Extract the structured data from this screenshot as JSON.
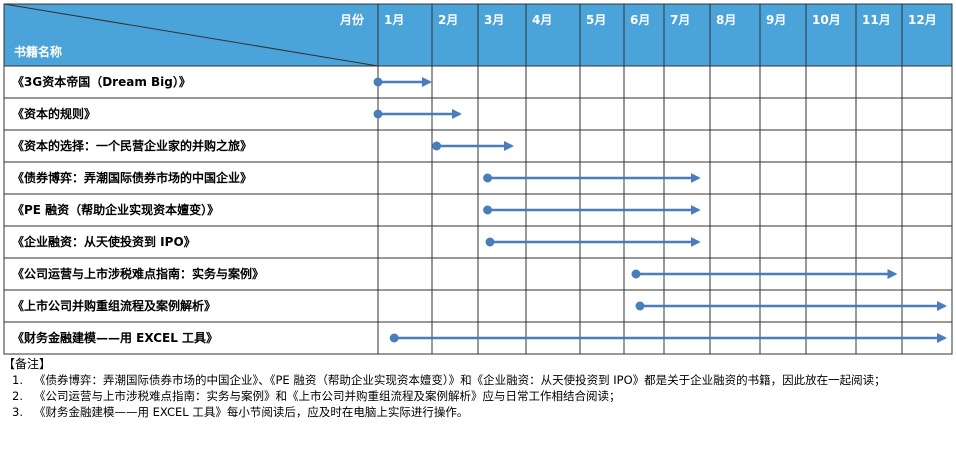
{
  "header": {
    "month_label": "月份",
    "book_label": "书籍名称",
    "color": "#4aa3d9"
  },
  "months": [
    "1月",
    "2月",
    "3月",
    "4月",
    "5月",
    "6月",
    "7月",
    "8月",
    "9月",
    "10月",
    "11月",
    "12月"
  ],
  "arrow_color": "#4a7ebb",
  "books": [
    {
      "title": "《3G资本帝国（Dream Big）》",
      "start_month": 1.0,
      "end_month": 2.0
    },
    {
      "title": "《资本的规则》",
      "start_month": 1.0,
      "end_month": 2.65
    },
    {
      "title": "《资本的选择：一个民营企业家的并购之旅》",
      "start_month": 2.1,
      "end_month": 3.75
    },
    {
      "title": "《债券博弈：弄潮国际债券市场的中国企业》",
      "start_month": 3.2,
      "end_month": 7.8
    },
    {
      "title": "《PE 融资（帮助企业实现资本嬗变）》",
      "start_month": 3.2,
      "end_month": 7.8
    },
    {
      "title": "《企业融资：从天使投资到 IPO》",
      "start_month": 3.25,
      "end_month": 7.8
    },
    {
      "title": "《公司运营与上市涉税难点指南：实务与案例》",
      "start_month": 6.3,
      "end_month": 11.9
    },
    {
      "title": "《上市公司并购重组流程及案例解析》",
      "start_month": 6.4,
      "end_month": 12.9
    },
    {
      "title": "《财务金融建模——用 EXCEL 工具》",
      "start_month": 1.3,
      "end_month": 12.9
    }
  ],
  "notes": {
    "title": "【备注】",
    "items": [
      {
        "num": "1.",
        "text": "《债券博弈：弄潮国际债券市场的中国企业》、《PE 融资（帮助企业实现资本嬗变）》和《企业融资：从天使投资到 IPO》都是关于企业融资的书籍，因此放在一起阅读；"
      },
      {
        "num": "2.",
        "text": "《公司运营与上市涉税难点指南：实务与案例》和《上市公司并购重组流程及案例解析》应与日常工作相结合阅读；"
      },
      {
        "num": "3.",
        "text": "《财务金融建模——用 EXCEL 工具》每小节阅读后，应及时在电脑上实际进行操作。"
      }
    ]
  }
}
